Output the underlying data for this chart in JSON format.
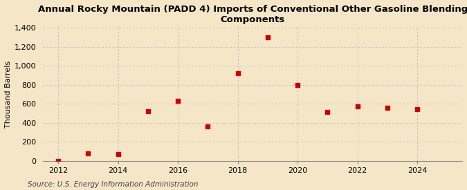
{
  "title": "Annual Rocky Mountain (PADD 4) Imports of Conventional Other Gasoline Blending\nComponents",
  "ylabel": "Thousand Barrels",
  "source": "Source: U.S. Energy Information Administration",
  "background_color": "#f5e6c8",
  "plot_bg_color": "#f5e6c8",
  "years": [
    2012,
    2013,
    2014,
    2015,
    2016,
    2017,
    2018,
    2019,
    2020,
    2021,
    2022,
    2023,
    2024
  ],
  "values": [
    0,
    75,
    70,
    520,
    630,
    360,
    920,
    1300,
    800,
    510,
    570,
    560,
    540
  ],
  "marker_color": "#cc0000",
  "marker_size": 5,
  "ylim": [
    0,
    1400
  ],
  "yticks": [
    0,
    200,
    400,
    600,
    800,
    1000,
    1200,
    1400
  ],
  "xlim": [
    2011.5,
    2025.5
  ],
  "xticks": [
    2012,
    2014,
    2016,
    2018,
    2020,
    2022,
    2024
  ],
  "grid_color": "#bbbbbb",
  "title_fontsize": 9.5,
  "axis_fontsize": 8,
  "tick_fontsize": 8,
  "source_fontsize": 7.5
}
